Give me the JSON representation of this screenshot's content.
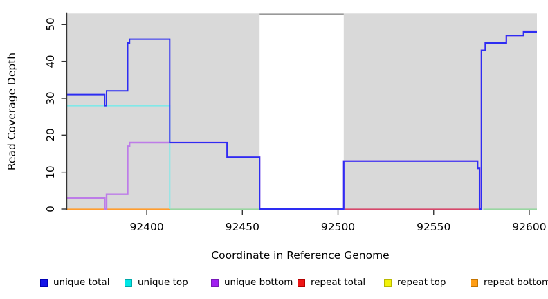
{
  "chart_data": {
    "type": "line",
    "title": "",
    "xlabel": "Coordinate in Reference Genome",
    "ylabel": "Read Coverage Depth",
    "x_ticks": [
      92400,
      92450,
      92500,
      92550,
      92600
    ],
    "y_ticks": [
      0,
      10,
      20,
      30,
      40,
      50
    ],
    "xlim": [
      92358,
      92604
    ],
    "ylim": [
      0,
      53
    ],
    "grid": false,
    "legend_position": "bottom",
    "panel_color": "#d9d9d9",
    "coverage_panels": [
      [
        92358,
        92459
      ],
      [
        92503,
        92604
      ]
    ],
    "gap_region": {
      "x0": 92459,
      "x1": 92503,
      "top_value": 52.8,
      "line_color": "#999999"
    },
    "series": [
      {
        "name": "unique top",
        "color": "#80e8e8",
        "width": 2,
        "steps": [
          [
            92358,
            28
          ],
          [
            92412,
            0
          ]
        ]
      },
      {
        "name": "unique bottom",
        "color": "#bd7ce8",
        "width": 2.4,
        "steps": [
          [
            92358,
            3
          ],
          [
            92378,
            0
          ],
          [
            92379,
            4
          ],
          [
            92390,
            17
          ],
          [
            92391,
            18
          ],
          [
            92412,
            18
          ],
          [
            92442,
            14
          ],
          [
            92459,
            0
          ],
          [
            92503,
            13
          ],
          [
            92573,
            11
          ],
          [
            92574,
            0
          ],
          [
            92575,
            43
          ],
          [
            92577,
            45
          ],
          [
            92588,
            47
          ],
          [
            92597,
            48
          ],
          [
            92604,
            48
          ]
        ]
      },
      {
        "name": "unique total",
        "color": "#2d2df2",
        "width": 2,
        "steps": [
          [
            92358,
            31
          ],
          [
            92378,
            28
          ],
          [
            92379,
            32
          ],
          [
            92390,
            45
          ],
          [
            92391,
            46
          ],
          [
            92412,
            18
          ],
          [
            92442,
            14
          ],
          [
            92459,
            0
          ],
          [
            92503,
            13
          ],
          [
            92573,
            11
          ],
          [
            92574,
            0
          ],
          [
            92575,
            43
          ],
          [
            92577,
            45
          ],
          [
            92588,
            47
          ],
          [
            92597,
            48
          ],
          [
            92604,
            48
          ]
        ]
      }
    ],
    "zero_level_segments": [
      {
        "x0": 92358,
        "x1": 92412,
        "color": "#ff9d2e",
        "series": "repeat bottom"
      },
      {
        "x0": 92412,
        "x1": 92459,
        "color": "#99d6a1",
        "series": "repeat top"
      },
      {
        "x0": 92503,
        "x1": 92574,
        "color": "#d6486b",
        "series": "repeat total"
      },
      {
        "x0": 92576,
        "x1": 92604,
        "color": "#99d6a1",
        "series": "repeat top"
      }
    ],
    "legend": [
      {
        "label": "unique total",
        "fill": "#1414e8",
        "border": "#0000b4"
      },
      {
        "label": "unique top",
        "fill": "#00e6e6",
        "border": "#00a8a8"
      },
      {
        "label": "unique bottom",
        "fill": "#a020f0",
        "border": "#7718b8"
      },
      {
        "label": "repeat total",
        "fill": "#ee1515",
        "border": "#b40000"
      },
      {
        "label": "repeat top",
        "fill": "#f2f20a",
        "border": "#b8b800"
      },
      {
        "label": "repeat bottom",
        "fill": "#ff9d14",
        "border": "#c47400"
      }
    ]
  }
}
